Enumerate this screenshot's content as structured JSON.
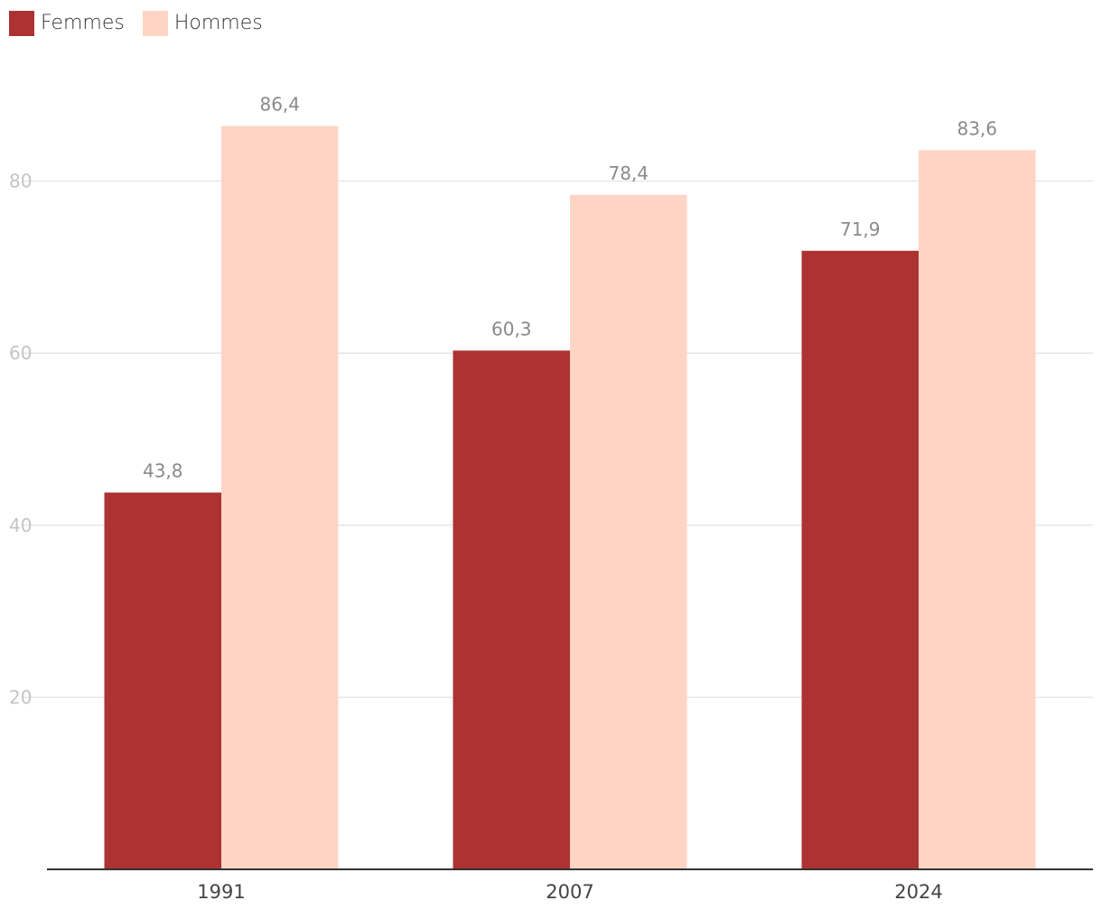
{
  "chart_data": {
    "type": "bar",
    "categories": [
      "1991",
      "2007",
      "2024"
    ],
    "series": [
      {
        "name": "Femmes",
        "color": "#ad3232",
        "values": [
          43.8,
          60.3,
          71.9
        ],
        "labels": [
          "43,8",
          "60,3",
          "71,9"
        ]
      },
      {
        "name": "Hommes",
        "color": "#fed5c4",
        "values": [
          86.4,
          78.4,
          83.6
        ],
        "labels": [
          "86,4",
          "78,4",
          "83,6"
        ]
      }
    ],
    "yticks": [
      20,
      40,
      60,
      80
    ],
    "ytick_labels": [
      "20",
      "40",
      "60",
      "80"
    ],
    "ylim": [
      0,
      100
    ],
    "grid": true,
    "legend_position": "top-left",
    "title": "",
    "xlabel": "",
    "ylabel": ""
  }
}
